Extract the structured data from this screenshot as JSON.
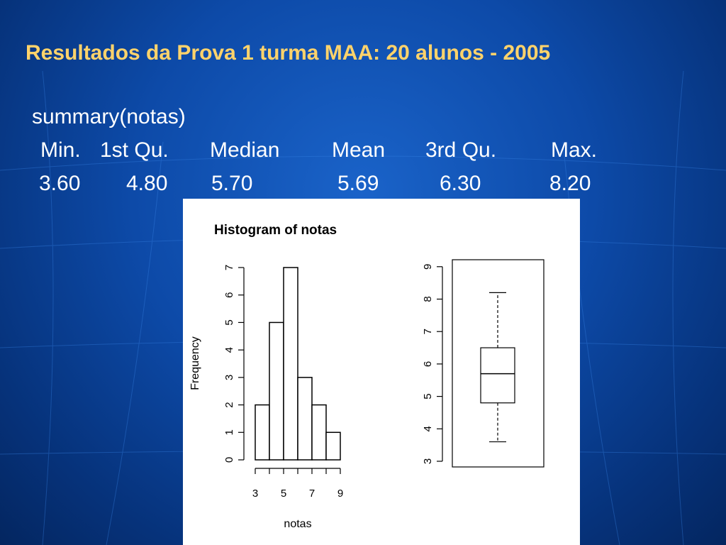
{
  "slide": {
    "title": "Resultados da Prova 1 turma MAA: 20 alunos - 2005",
    "summary_command": "summary(notas)",
    "summary_headers": [
      "Min.",
      "1st Qu.",
      "Median",
      "Mean",
      "3rd Qu.",
      "Max."
    ],
    "summary_values": [
      "3.60",
      "4.80",
      "5.70",
      "5.69",
      "6.30",
      "8.20"
    ],
    "colors": {
      "background": "#0d4aa8",
      "title": "#ffd36b",
      "text": "#ffffff"
    }
  },
  "chart_data": [
    {
      "type": "bar",
      "title": "Histogram of notas",
      "xlabel": "notas",
      "ylabel": "Frequency",
      "bin_edges": [
        3,
        4,
        5,
        6,
        7,
        8,
        9
      ],
      "values": [
        2,
        5,
        7,
        3,
        2,
        1
      ],
      "x_ticks": [
        3,
        4,
        5,
        6,
        7,
        8,
        9
      ],
      "x_tick_labels": [
        "3",
        "",
        "5",
        "",
        "7",
        "",
        "9"
      ],
      "y_ticks": [
        0,
        1,
        2,
        3,
        4,
        5,
        6,
        7
      ],
      "xlim": [
        3,
        9
      ],
      "ylim": [
        0,
        7
      ]
    },
    {
      "type": "boxplot",
      "min": 3.6,
      "q1": 4.8,
      "median": 5.7,
      "q3": 6.5,
      "max": 8.2,
      "y_ticks": [
        3,
        4,
        5,
        6,
        7,
        8,
        9
      ],
      "ylim": [
        2.8,
        9.2
      ]
    }
  ]
}
